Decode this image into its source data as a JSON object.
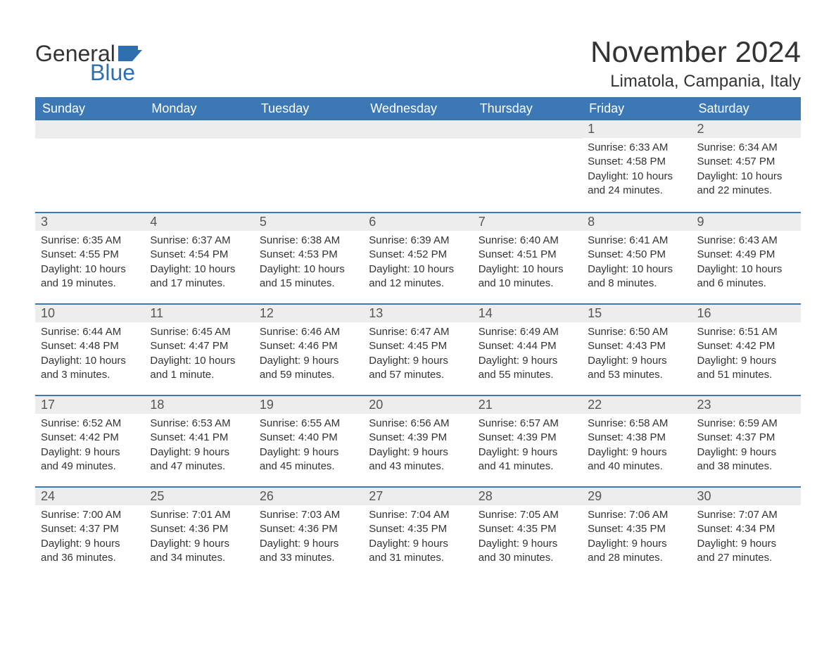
{
  "brand": {
    "word1": "General",
    "word2": "Blue",
    "flag_color": "#2f6fb0"
  },
  "title": "November 2024",
  "location": "Limatola, Campania, Italy",
  "colors": {
    "header_bg": "#3b78b5",
    "header_text": "#ffffff",
    "daynum_bg": "#ededed",
    "daynum_border": "#3b78b5",
    "body_text": "#333333",
    "page_bg": "#ffffff",
    "brand_blue": "#2f6fb0"
  },
  "day_headers": [
    "Sunday",
    "Monday",
    "Tuesday",
    "Wednesday",
    "Thursday",
    "Friday",
    "Saturday"
  ],
  "weeks": [
    [
      {
        "blank": true
      },
      {
        "blank": true
      },
      {
        "blank": true
      },
      {
        "blank": true
      },
      {
        "blank": true
      },
      {
        "n": "1",
        "sunrise": "6:33 AM",
        "sunset": "4:58 PM",
        "daylight": "10 hours and 24 minutes."
      },
      {
        "n": "2",
        "sunrise": "6:34 AM",
        "sunset": "4:57 PM",
        "daylight": "10 hours and 22 minutes."
      }
    ],
    [
      {
        "n": "3",
        "sunrise": "6:35 AM",
        "sunset": "4:55 PM",
        "daylight": "10 hours and 19 minutes."
      },
      {
        "n": "4",
        "sunrise": "6:37 AM",
        "sunset": "4:54 PM",
        "daylight": "10 hours and 17 minutes."
      },
      {
        "n": "5",
        "sunrise": "6:38 AM",
        "sunset": "4:53 PM",
        "daylight": "10 hours and 15 minutes."
      },
      {
        "n": "6",
        "sunrise": "6:39 AM",
        "sunset": "4:52 PM",
        "daylight": "10 hours and 12 minutes."
      },
      {
        "n": "7",
        "sunrise": "6:40 AM",
        "sunset": "4:51 PM",
        "daylight": "10 hours and 10 minutes."
      },
      {
        "n": "8",
        "sunrise": "6:41 AM",
        "sunset": "4:50 PM",
        "daylight": "10 hours and 8 minutes."
      },
      {
        "n": "9",
        "sunrise": "6:43 AM",
        "sunset": "4:49 PM",
        "daylight": "10 hours and 6 minutes."
      }
    ],
    [
      {
        "n": "10",
        "sunrise": "6:44 AM",
        "sunset": "4:48 PM",
        "daylight": "10 hours and 3 minutes."
      },
      {
        "n": "11",
        "sunrise": "6:45 AM",
        "sunset": "4:47 PM",
        "daylight": "10 hours and 1 minute."
      },
      {
        "n": "12",
        "sunrise": "6:46 AM",
        "sunset": "4:46 PM",
        "daylight": "9 hours and 59 minutes."
      },
      {
        "n": "13",
        "sunrise": "6:47 AM",
        "sunset": "4:45 PM",
        "daylight": "9 hours and 57 minutes."
      },
      {
        "n": "14",
        "sunrise": "6:49 AM",
        "sunset": "4:44 PM",
        "daylight": "9 hours and 55 minutes."
      },
      {
        "n": "15",
        "sunrise": "6:50 AM",
        "sunset": "4:43 PM",
        "daylight": "9 hours and 53 minutes."
      },
      {
        "n": "16",
        "sunrise": "6:51 AM",
        "sunset": "4:42 PM",
        "daylight": "9 hours and 51 minutes."
      }
    ],
    [
      {
        "n": "17",
        "sunrise": "6:52 AM",
        "sunset": "4:42 PM",
        "daylight": "9 hours and 49 minutes."
      },
      {
        "n": "18",
        "sunrise": "6:53 AM",
        "sunset": "4:41 PM",
        "daylight": "9 hours and 47 minutes."
      },
      {
        "n": "19",
        "sunrise": "6:55 AM",
        "sunset": "4:40 PM",
        "daylight": "9 hours and 45 minutes."
      },
      {
        "n": "20",
        "sunrise": "6:56 AM",
        "sunset": "4:39 PM",
        "daylight": "9 hours and 43 minutes."
      },
      {
        "n": "21",
        "sunrise": "6:57 AM",
        "sunset": "4:39 PM",
        "daylight": "9 hours and 41 minutes."
      },
      {
        "n": "22",
        "sunrise": "6:58 AM",
        "sunset": "4:38 PM",
        "daylight": "9 hours and 40 minutes."
      },
      {
        "n": "23",
        "sunrise": "6:59 AM",
        "sunset": "4:37 PM",
        "daylight": "9 hours and 38 minutes."
      }
    ],
    [
      {
        "n": "24",
        "sunrise": "7:00 AM",
        "sunset": "4:37 PM",
        "daylight": "9 hours and 36 minutes."
      },
      {
        "n": "25",
        "sunrise": "7:01 AM",
        "sunset": "4:36 PM",
        "daylight": "9 hours and 34 minutes."
      },
      {
        "n": "26",
        "sunrise": "7:03 AM",
        "sunset": "4:36 PM",
        "daylight": "9 hours and 33 minutes."
      },
      {
        "n": "27",
        "sunrise": "7:04 AM",
        "sunset": "4:35 PM",
        "daylight": "9 hours and 31 minutes."
      },
      {
        "n": "28",
        "sunrise": "7:05 AM",
        "sunset": "4:35 PM",
        "daylight": "9 hours and 30 minutes."
      },
      {
        "n": "29",
        "sunrise": "7:06 AM",
        "sunset": "4:35 PM",
        "daylight": "9 hours and 28 minutes."
      },
      {
        "n": "30",
        "sunrise": "7:07 AM",
        "sunset": "4:34 PM",
        "daylight": "9 hours and 27 minutes."
      }
    ]
  ],
  "labels": {
    "sunrise": "Sunrise: ",
    "sunset": "Sunset: ",
    "daylight": "Daylight: "
  }
}
